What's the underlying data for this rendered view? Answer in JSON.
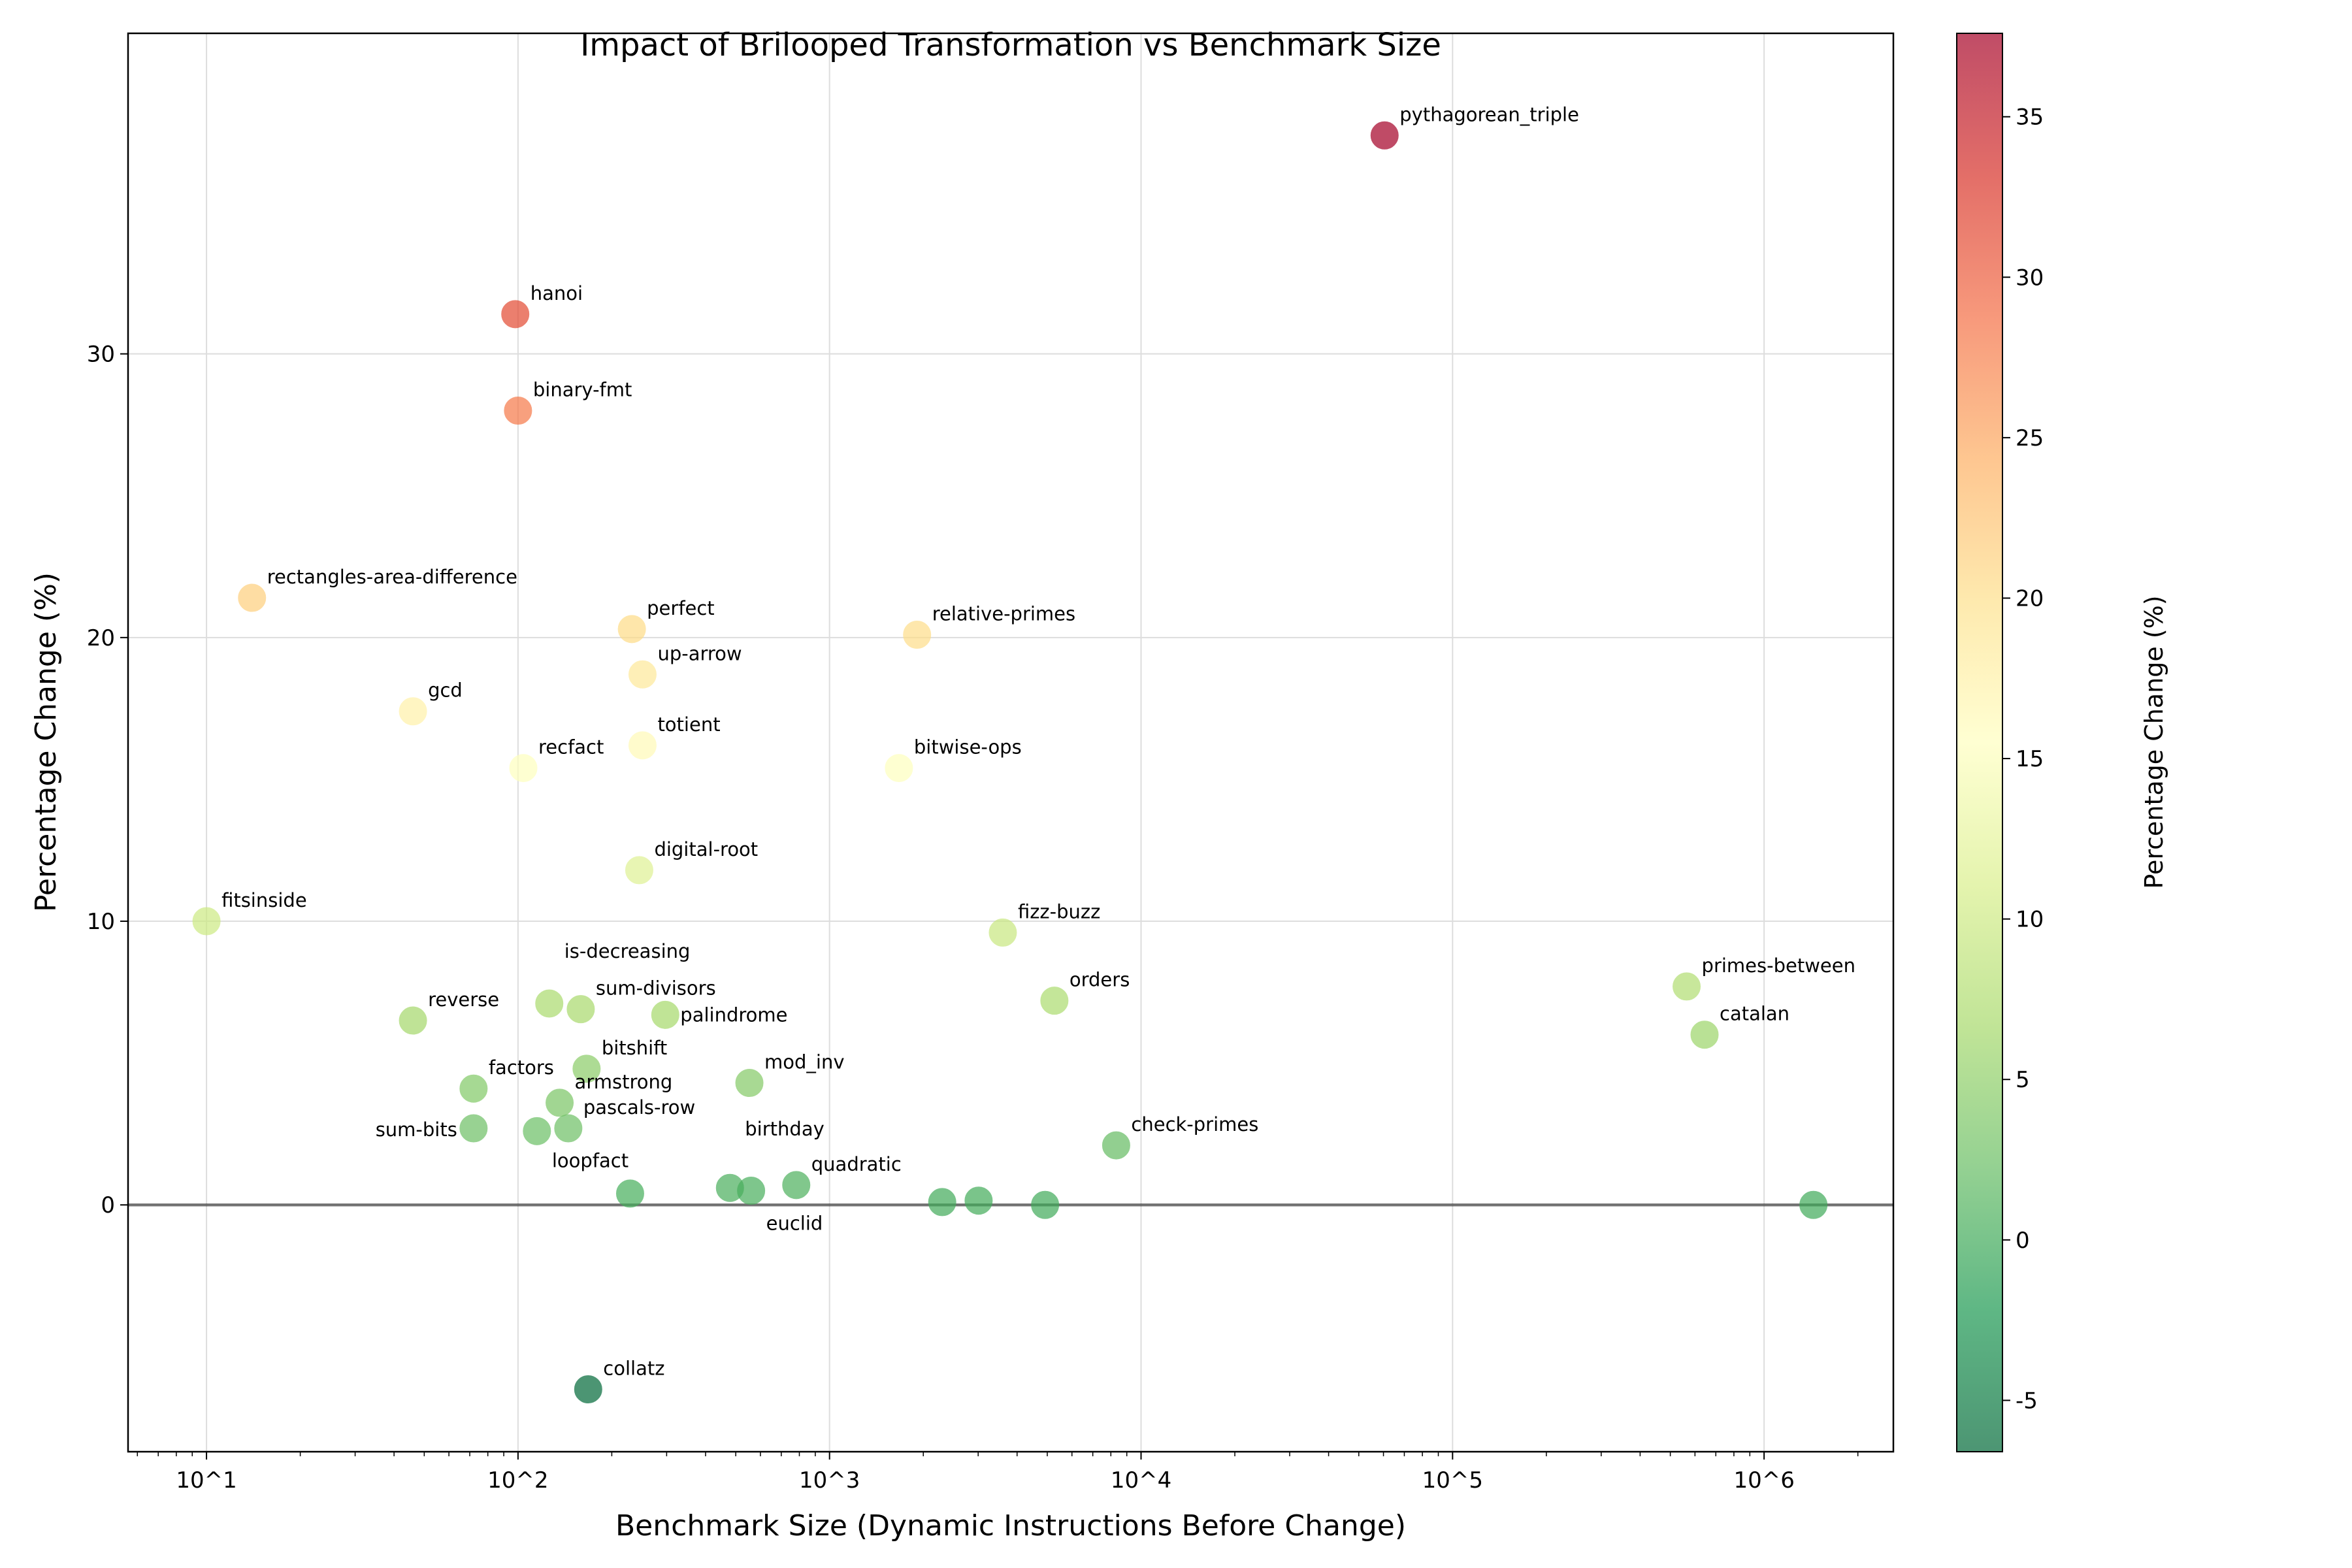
{
  "chart_data": {
    "type": "scatter",
    "title": "Impact of Brilooped Transformation vs Benchmark Size",
    "xlabel": "Benchmark Size (Dynamic Instructions Before Change)",
    "ylabel": "Percentage Change (%)",
    "xscale": "log",
    "xlim": [
      5.6,
      2600000
    ],
    "ylim": [
      -8.7,
      41.3
    ],
    "x_ticks": [
      10,
      100,
      1000,
      10000,
      100000,
      1000000
    ],
    "x_tick_labels": [
      "10^1",
      "10^2",
      "10^3",
      "10^4",
      "10^5",
      "10^6"
    ],
    "y_ticks": [
      0,
      10,
      20,
      30
    ],
    "grid": true,
    "reference_line_y": 0,
    "colormap": "RdYlGn_r",
    "color_range": [
      -6.6,
      37.6
    ],
    "colorbar": {
      "label": "Percentage Change (%)",
      "ticks": [
        -5,
        0,
        5,
        10,
        15,
        20,
        25,
        30,
        35
      ]
    },
    "points": [
      {
        "label": "pythagorean_triple",
        "x": 60500,
        "y": 37.7
      },
      {
        "label": "hanoi",
        "x": 98,
        "y": 31.4
      },
      {
        "label": "binary-fmt",
        "x": 100,
        "y": 28.0
      },
      {
        "label": "rectangles-area-difference",
        "x": 14,
        "y": 21.4
      },
      {
        "label": "perfect",
        "x": 232,
        "y": 20.3
      },
      {
        "label": "relative-primes",
        "x": 1910,
        "y": 20.1
      },
      {
        "label": "up-arrow",
        "x": 251,
        "y": 18.7
      },
      {
        "label": "gcd",
        "x": 46,
        "y": 17.4
      },
      {
        "label": "totient",
        "x": 251,
        "y": 16.2
      },
      {
        "label": "bitwise-ops",
        "x": 1670,
        "y": 15.4
      },
      {
        "label": "recfact",
        "x": 104,
        "y": 15.4
      },
      {
        "label": "digital-root",
        "x": 245,
        "y": 11.8
      },
      {
        "label": "fitsinside",
        "x": 10,
        "y": 10.0
      },
      {
        "label": "fizz-buzz",
        "x": 3600,
        "y": 9.6
      },
      {
        "label": "primes-between",
        "x": 564000,
        "y": 7.7
      },
      {
        "label": "orders",
        "x": 5270,
        "y": 7.2
      },
      {
        "label": "is-decreasing",
        "x": 126,
        "y": 7.1
      },
      {
        "label": "sum-divisors",
        "x": 159,
        "y": 6.9
      },
      {
        "label": "palindrome",
        "x": 297,
        "y": 6.7
      },
      {
        "label": "reverse",
        "x": 46,
        "y": 6.5
      },
      {
        "label": "catalan",
        "x": 644000,
        "y": 6.0
      },
      {
        "label": "bitshift",
        "x": 166,
        "y": 4.8
      },
      {
        "label": "mod_inv",
        "x": 553,
        "y": 4.3
      },
      {
        "label": "factors",
        "x": 72,
        "y": 4.1
      },
      {
        "label": "armstrong",
        "x": 136,
        "y": 3.6
      },
      {
        "label": "sum-bits",
        "x": 72,
        "y": 2.7
      },
      {
        "label": "pascals-row",
        "x": 145,
        "y": 2.7
      },
      {
        "label": "loopfact",
        "x": 115,
        "y": 2.6
      },
      {
        "label": "check-primes",
        "x": 8320,
        "y": 2.1
      },
      {
        "label": "",
        "x": 229,
        "y": 0.4
      },
      {
        "label": "birthday",
        "x": 479,
        "y": 0.6
      },
      {
        "label": "euclid",
        "x": 560,
        "y": 0.5
      },
      {
        "label": "quadratic",
        "x": 782,
        "y": 0.7
      },
      {
        "label": "",
        "x": 2300,
        "y": 0.1
      },
      {
        "label": "",
        "x": 3010,
        "y": 0.15
      },
      {
        "label": "",
        "x": 4920,
        "y": 0.0
      },
      {
        "label": "",
        "x": 1440000,
        "y": 0.0
      },
      {
        "label": "collatz",
        "x": 168,
        "y": -6.5
      }
    ]
  }
}
